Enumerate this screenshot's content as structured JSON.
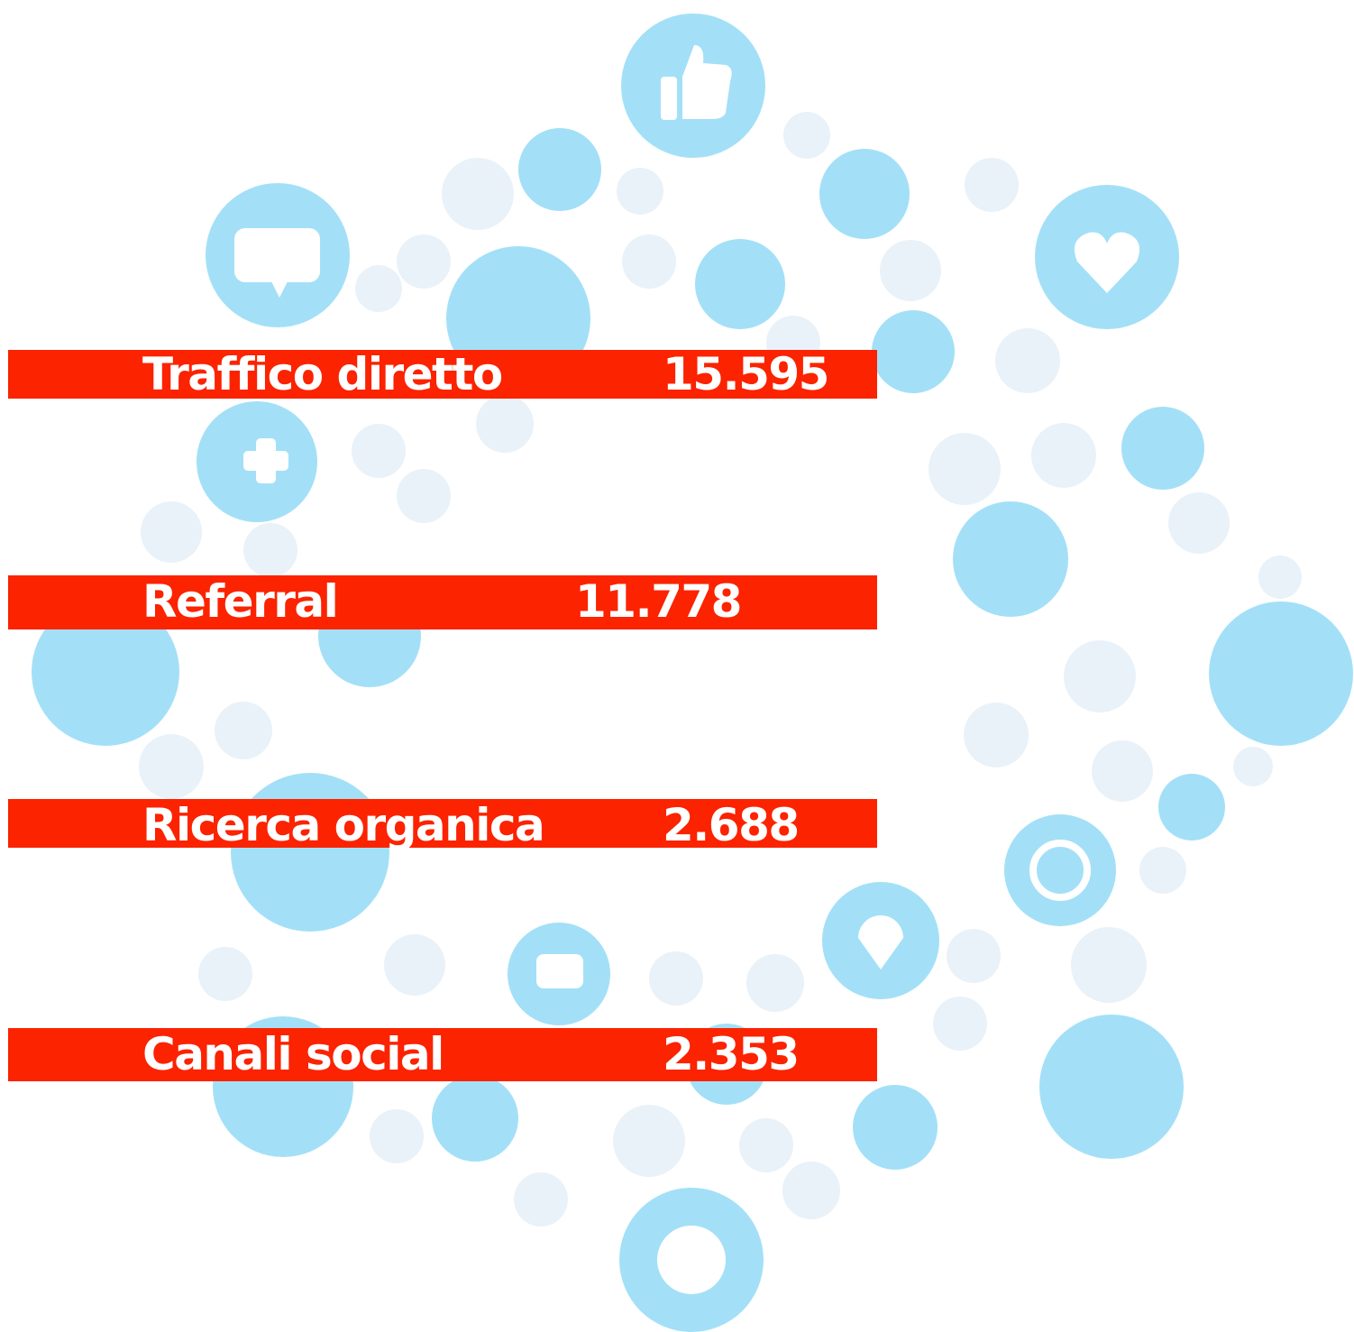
{
  "rows": [
    {
      "label": "Traffico diretto",
      "value": "15.595"
    },
    {
      "label": "Referral",
      "value": "11.778"
    },
    {
      "label": "Ricerca organica",
      "value": "2.688"
    },
    {
      "label": "Canali social",
      "value": "2.353"
    }
  ]
}
